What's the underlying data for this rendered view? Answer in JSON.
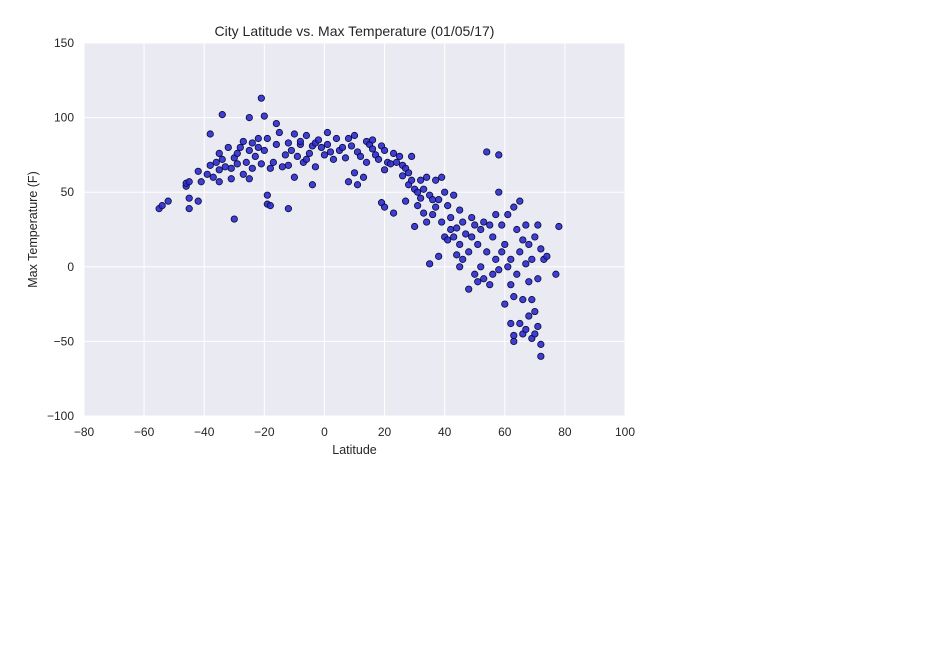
{
  "chart_data": {
    "type": "scatter",
    "title": "City Latitude vs. Max Temperature (01/05/17)",
    "xlabel": "Latitude",
    "ylabel": "Max Temperature (F)",
    "xlim": [
      -80,
      100
    ],
    "ylim": [
      -100,
      150
    ],
    "xticks": [
      "−80",
      "−60",
      "−40",
      "−20",
      "0",
      "20",
      "40",
      "60",
      "80",
      "100"
    ],
    "yticks": [
      "150",
      "100",
      "50",
      "0",
      "−50",
      "−100"
    ],
    "grid": true,
    "colors": {
      "background": "#eaeaf2",
      "grid": "#ffffff",
      "marker_fill": "#2b2bcf",
      "marker_edge": "#0a0a3a"
    },
    "series": [
      {
        "points": [
          [
            -55,
            39
          ],
          [
            -54,
            41
          ],
          [
            -52,
            44
          ],
          [
            -46,
            54
          ],
          [
            -46,
            56
          ],
          [
            -45,
            57
          ],
          [
            -45,
            46
          ],
          [
            -45,
            39
          ],
          [
            -42,
            44
          ],
          [
            -42,
            64
          ],
          [
            -41,
            57
          ],
          [
            -39,
            62
          ],
          [
            -38,
            89
          ],
          [
            -38,
            68
          ],
          [
            -37,
            60
          ],
          [
            -36,
            70
          ],
          [
            -35,
            76
          ],
          [
            -35,
            65
          ],
          [
            -35,
            57
          ],
          [
            -34,
            102
          ],
          [
            -34,
            72
          ],
          [
            -33,
            67
          ],
          [
            -32,
            80
          ],
          [
            -31,
            66
          ],
          [
            -31,
            59
          ],
          [
            -30,
            32
          ],
          [
            -30,
            73
          ],
          [
            -29,
            76
          ],
          [
            -29,
            69
          ],
          [
            -28,
            80
          ],
          [
            -27,
            62
          ],
          [
            -27,
            84
          ],
          [
            -26,
            70
          ],
          [
            -25,
            100
          ],
          [
            -25,
            59
          ],
          [
            -25,
            78
          ],
          [
            -24,
            83
          ],
          [
            -24,
            66
          ],
          [
            -23,
            74
          ],
          [
            -22,
            80
          ],
          [
            -22,
            86
          ],
          [
            -21,
            113
          ],
          [
            -21,
            69
          ],
          [
            -20,
            101
          ],
          [
            -20,
            78
          ],
          [
            -19,
            48
          ],
          [
            -19,
            42
          ],
          [
            -19,
            86
          ],
          [
            -18,
            66
          ],
          [
            -18,
            41
          ],
          [
            -17,
            70
          ],
          [
            -16,
            82
          ],
          [
            -16,
            96
          ],
          [
            -15,
            90
          ],
          [
            -14,
            67
          ],
          [
            -13,
            75
          ],
          [
            -12,
            83
          ],
          [
            -12,
            39
          ],
          [
            -12,
            68
          ],
          [
            -11,
            78
          ],
          [
            -10,
            89
          ],
          [
            -10,
            60
          ],
          [
            -9,
            74
          ],
          [
            -8,
            82
          ],
          [
            -8,
            84
          ],
          [
            -7,
            70
          ],
          [
            -6,
            88
          ],
          [
            -6,
            72
          ],
          [
            -5,
            76
          ],
          [
            -4,
            55
          ],
          [
            -4,
            81
          ],
          [
            -3,
            83
          ],
          [
            -3,
            67
          ],
          [
            -2,
            85
          ],
          [
            -1,
            80
          ],
          [
            0,
            75
          ],
          [
            1,
            82
          ],
          [
            1,
            90
          ],
          [
            2,
            77
          ],
          [
            3,
            72
          ],
          [
            4,
            86
          ],
          [
            5,
            78
          ],
          [
            6,
            80
          ],
          [
            7,
            73
          ],
          [
            8,
            86
          ],
          [
            8,
            57
          ],
          [
            9,
            81
          ],
          [
            10,
            88
          ],
          [
            10,
            63
          ],
          [
            11,
            55
          ],
          [
            11,
            77
          ],
          [
            12,
            74
          ],
          [
            13,
            60
          ],
          [
            14,
            84
          ],
          [
            14,
            70
          ],
          [
            15,
            82
          ],
          [
            16,
            79
          ],
          [
            16,
            85
          ],
          [
            17,
            75
          ],
          [
            18,
            72
          ],
          [
            19,
            81
          ],
          [
            19,
            43
          ],
          [
            20,
            40
          ],
          [
            20,
            65
          ],
          [
            20,
            78
          ],
          [
            21,
            70
          ],
          [
            22,
            69
          ],
          [
            23,
            76
          ],
          [
            23,
            36
          ],
          [
            24,
            70
          ],
          [
            25,
            74
          ],
          [
            26,
            61
          ],
          [
            26,
            68
          ],
          [
            27,
            44
          ],
          [
            27,
            66
          ],
          [
            28,
            63
          ],
          [
            28,
            55
          ],
          [
            29,
            58
          ],
          [
            29,
            74
          ],
          [
            30,
            52
          ],
          [
            30,
            27
          ],
          [
            31,
            50
          ],
          [
            31,
            41
          ],
          [
            32,
            46
          ],
          [
            32,
            58
          ],
          [
            33,
            36
          ],
          [
            33,
            52
          ],
          [
            34,
            30
          ],
          [
            34,
            60
          ],
          [
            35,
            2
          ],
          [
            35,
            48
          ],
          [
            36,
            45
          ],
          [
            36,
            35
          ],
          [
            37,
            40
          ],
          [
            37,
            58
          ],
          [
            38,
            7
          ],
          [
            38,
            45
          ],
          [
            39,
            60
          ],
          [
            39,
            30
          ],
          [
            40,
            50
          ],
          [
            40,
            20
          ],
          [
            41,
            18
          ],
          [
            41,
            41
          ],
          [
            42,
            25
          ],
          [
            42,
            33
          ],
          [
            43,
            20
          ],
          [
            43,
            48
          ],
          [
            44,
            8
          ],
          [
            44,
            26
          ],
          [
            45,
            0
          ],
          [
            45,
            15
          ],
          [
            45,
            38
          ],
          [
            46,
            30
          ],
          [
            46,
            5
          ],
          [
            47,
            22
          ],
          [
            48,
            -15
          ],
          [
            48,
            10
          ],
          [
            49,
            33
          ],
          [
            49,
            20
          ],
          [
            50,
            -5
          ],
          [
            50,
            28
          ],
          [
            51,
            -10
          ],
          [
            51,
            15
          ],
          [
            52,
            25
          ],
          [
            52,
            0
          ],
          [
            53,
            30
          ],
          [
            53,
            -8
          ],
          [
            54,
            77
          ],
          [
            54,
            10
          ],
          [
            55,
            -12
          ],
          [
            55,
            28
          ],
          [
            56,
            -5
          ],
          [
            56,
            20
          ],
          [
            57,
            5
          ],
          [
            57,
            35
          ],
          [
            58,
            75
          ],
          [
            58,
            -2
          ],
          [
            58,
            50
          ],
          [
            59,
            10
          ],
          [
            59,
            28
          ],
          [
            60,
            -25
          ],
          [
            60,
            15
          ],
          [
            61,
            0
          ],
          [
            61,
            35
          ],
          [
            62,
            -38
          ],
          [
            62,
            -12
          ],
          [
            62,
            5
          ],
          [
            63,
            -50
          ],
          [
            63,
            -46
          ],
          [
            63,
            -20
          ],
          [
            63,
            40
          ],
          [
            64,
            -5
          ],
          [
            64,
            25
          ],
          [
            65,
            -38
          ],
          [
            65,
            10
          ],
          [
            65,
            44
          ],
          [
            66,
            -45
          ],
          [
            66,
            -22
          ],
          [
            66,
            18
          ],
          [
            67,
            -42
          ],
          [
            67,
            2
          ],
          [
            67,
            28
          ],
          [
            68,
            -33
          ],
          [
            68,
            -10
          ],
          [
            68,
            15
          ],
          [
            69,
            -48
          ],
          [
            69,
            -22
          ],
          [
            69,
            5
          ],
          [
            70,
            -45
          ],
          [
            70,
            -30
          ],
          [
            70,
            20
          ],
          [
            71,
            -40
          ],
          [
            71,
            -8
          ],
          [
            71,
            28
          ],
          [
            72,
            -52
          ],
          [
            72,
            -60
          ],
          [
            72,
            12
          ],
          [
            73,
            5
          ],
          [
            74,
            7
          ],
          [
            77,
            -5
          ],
          [
            78,
            27
          ]
        ]
      }
    ]
  }
}
